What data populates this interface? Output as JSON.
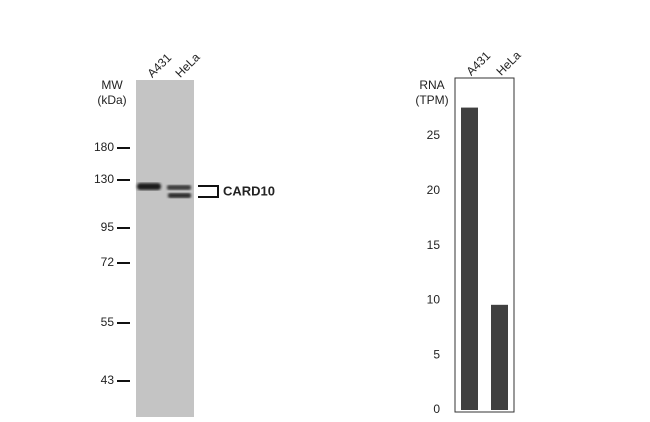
{
  "blot": {
    "lanes": [
      "A431",
      "HeLa"
    ],
    "mw_title": [
      "MW",
      "(kDa)"
    ],
    "markers": [
      180,
      130,
      95,
      72,
      55,
      43
    ],
    "band_label": "CARD10"
  },
  "chart_data": {
    "type": "bar",
    "ylabel": [
      "RNA",
      "(TPM)"
    ],
    "categories": [
      "A431",
      "HeLa"
    ],
    "values": [
      27.6,
      9.6
    ],
    "color": "#404040",
    "ylim": [
      0,
      30.3
    ],
    "yticks": [
      0,
      5,
      10,
      15,
      20,
      25
    ]
  }
}
